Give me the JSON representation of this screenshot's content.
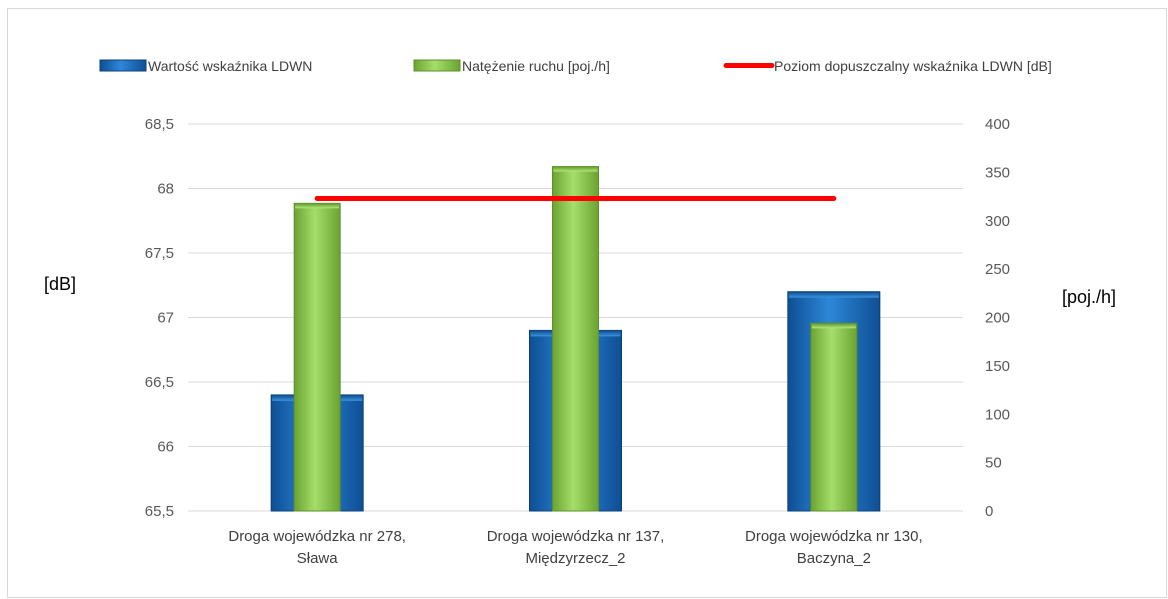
{
  "chart_data": {
    "type": "bar",
    "categories": [
      [
        "Droga wojewódzka nr 278,",
        "Sława"
      ],
      [
        "Droga wojewódzka nr 137,",
        "Międzyrzecz_2"
      ],
      [
        "Droga wojewódzka nr 130,",
        "Baczyna_2"
      ]
    ],
    "series": [
      {
        "name": "Wartość wskaźnika LDWN",
        "axis": "left",
        "values": [
          66.4,
          66.9,
          67.2
        ],
        "color": "#1f6fc0"
      },
      {
        "name": "Natężenie ruchu [poj./h]",
        "axis": "right",
        "values": [
          318,
          356,
          194
        ],
        "color": "#92d050"
      },
      {
        "name": "Poziom dopuszczalny wskaźnika LDWN [dB]",
        "axis": "left",
        "type": "line",
        "values": [
          68,
          68,
          68
        ],
        "color": "#ff0000"
      }
    ],
    "ylabel": "[dB]",
    "y2label": "[poj./h]",
    "ylim": [
      65.5,
      68.5
    ],
    "y2lim": [
      0,
      400
    ],
    "yticks": [
      "65,5",
      "66",
      "66,5",
      "67",
      "67,5",
      "68",
      "68,5"
    ],
    "y2ticks": [
      "0",
      "50",
      "100",
      "150",
      "200",
      "250",
      "300",
      "350",
      "400"
    ],
    "grid": true,
    "legend_position": "top"
  }
}
